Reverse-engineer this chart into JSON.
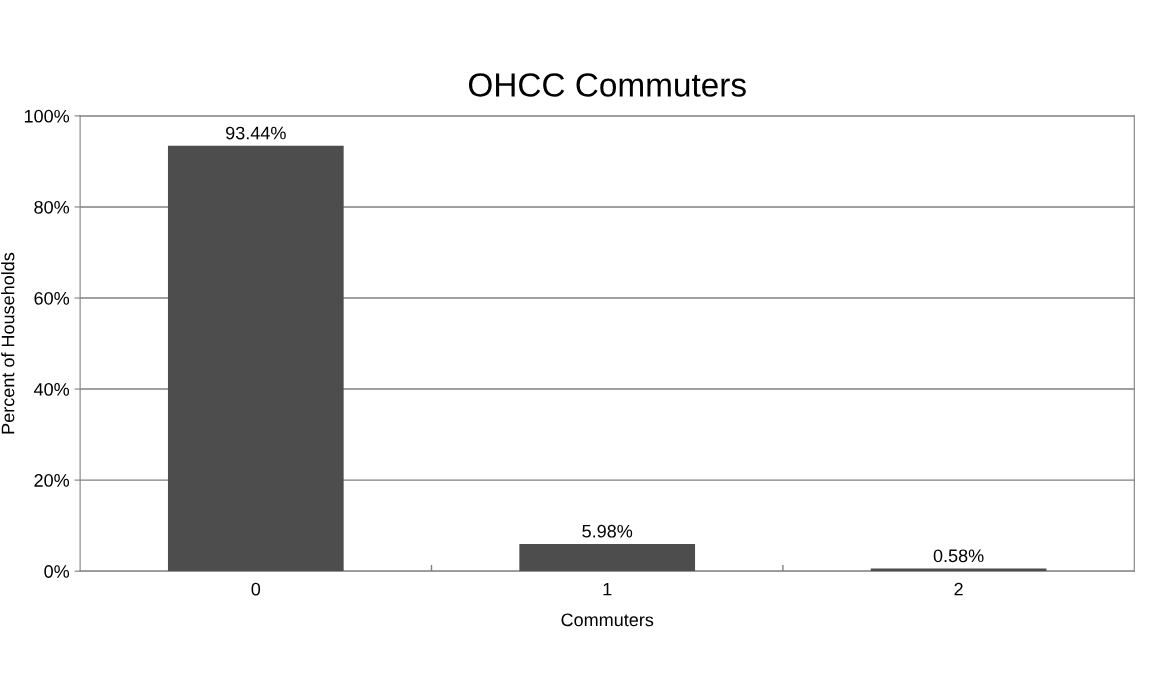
{
  "chart_data": {
    "type": "bar",
    "title": "OHCC Commuters",
    "xlabel": "Commuters",
    "ylabel": "Percent of Households",
    "categories": [
      "0",
      "1",
      "2"
    ],
    "values": [
      93.44,
      5.98,
      0.58
    ],
    "color": "#4d4d4d",
    "value_labels": [
      "93.44%",
      "5.98%",
      "0.58%"
    ],
    "ylim": [
      0,
      100
    ],
    "yticks": [
      {
        "value": 0,
        "label": "0%"
      },
      {
        "value": 20,
        "label": "20%"
      },
      {
        "value": 40,
        "label": "40%"
      },
      {
        "value": 60,
        "label": "60%"
      },
      {
        "value": 80,
        "label": "80%"
      },
      {
        "value": 100,
        "label": "100%"
      }
    ],
    "grid": "y"
  }
}
